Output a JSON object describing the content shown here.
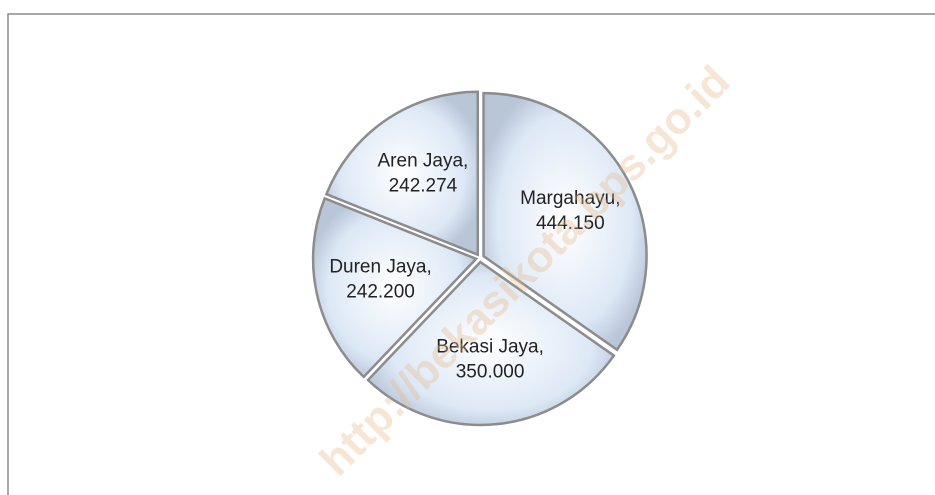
{
  "chart_data": {
    "type": "pie",
    "categories": [
      "Margahayu",
      "Bekasi Jaya",
      "Duren Jaya",
      "Aren Jaya"
    ],
    "values": [
      444150,
      350000,
      242200,
      242274
    ],
    "value_labels": [
      "444.150",
      "350.000",
      "242.200",
      "242.274"
    ],
    "label_separator": ",",
    "color": "#dde8f6",
    "edge_color": "#8c8c8c",
    "start_angle": 0,
    "direction": "clockwise",
    "watermark": "http://bekasikota.bps.go.id"
  }
}
